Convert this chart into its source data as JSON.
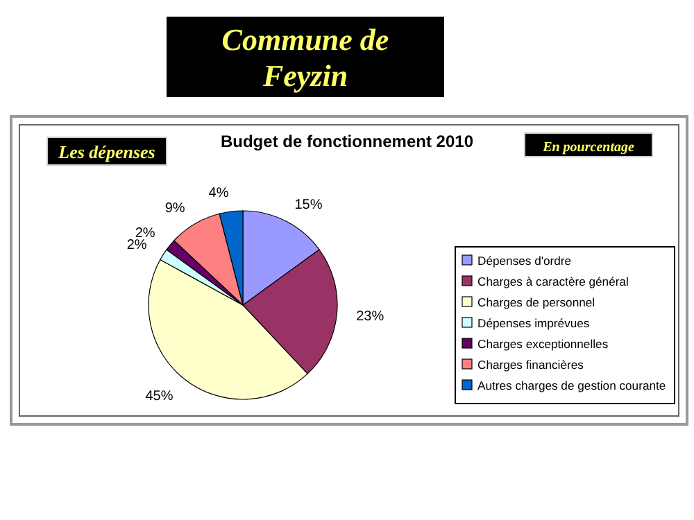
{
  "chart_data": {
    "type": "pie",
    "title": "Budget de fonctionnement 2010",
    "subtitle": "Commune de Feyzin",
    "annotations": [
      "Les dépenses",
      "En pourcentage"
    ],
    "categories": [
      "Dépenses d'ordre",
      "Charges à caractère général",
      "Charges de personnel",
      "Dépenses imprévues",
      "Charges exceptionnelles",
      "Charges financières",
      "Autres charges de gestion courante"
    ],
    "values": [
      15,
      23,
      45,
      2,
      2,
      9,
      4
    ],
    "colors": [
      "#9999ff",
      "#993366",
      "#ffffcc",
      "#ccffff",
      "#660066",
      "#ff8080",
      "#0066cc"
    ],
    "value_labels": [
      "15%",
      "23%",
      "45%",
      "2%",
      "2%",
      "9%",
      "4%"
    ],
    "legend": "right"
  }
}
